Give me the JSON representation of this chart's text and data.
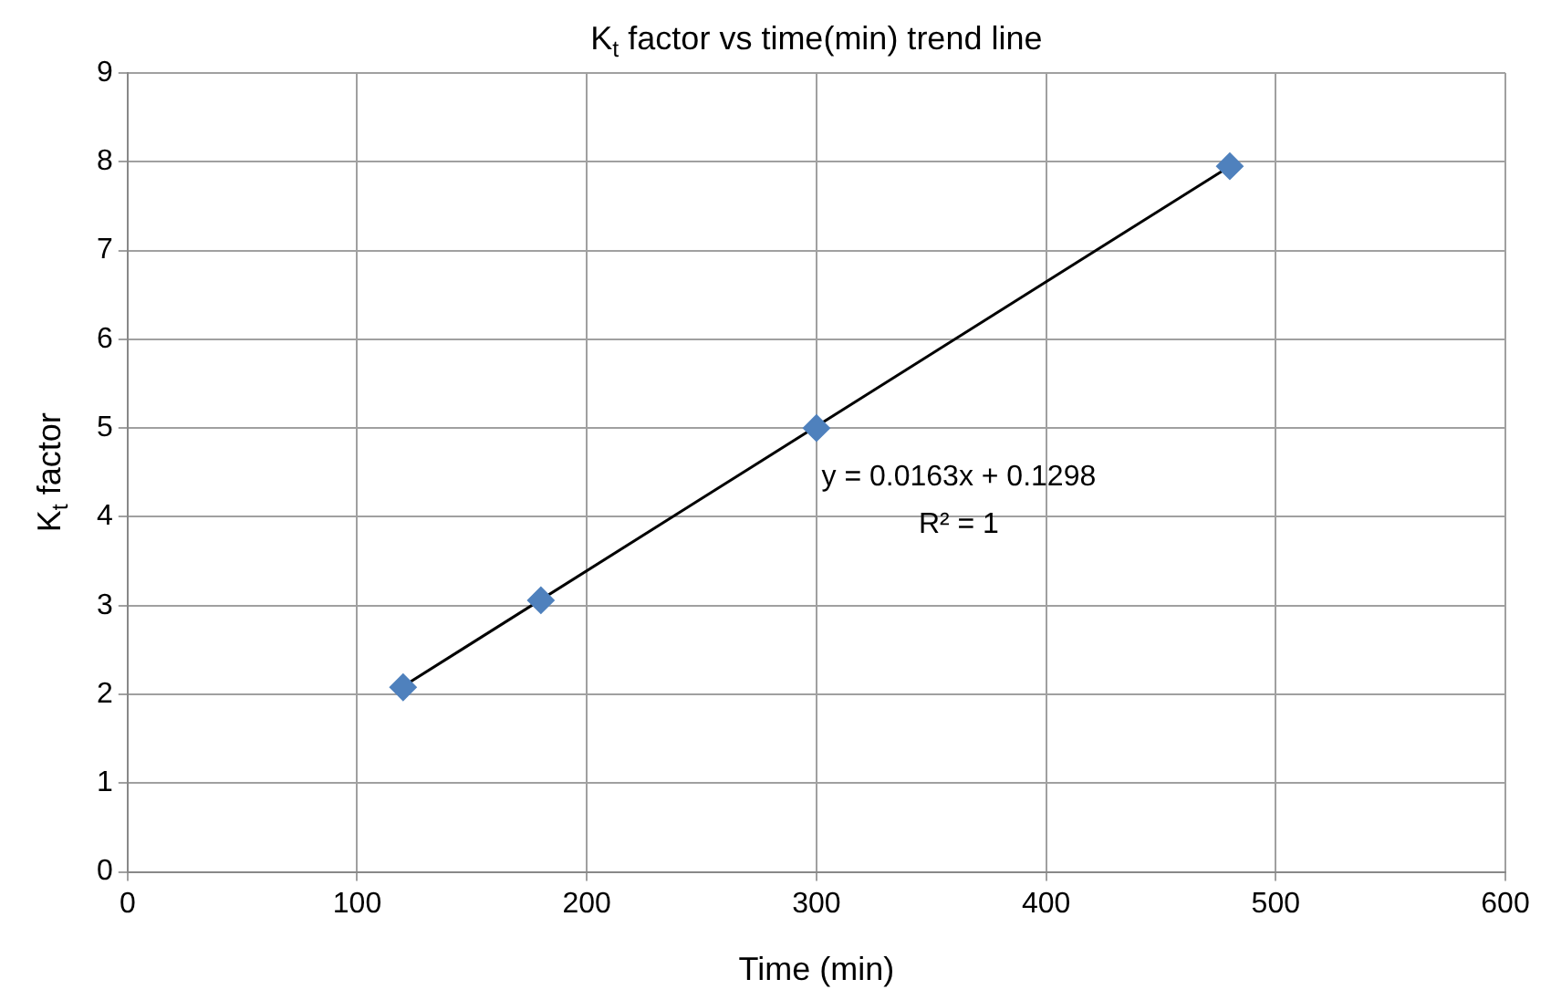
{
  "chart_data": {
    "type": "scatter",
    "title": "K$_{t}$ factor vs time(min) trend line",
    "xlabel": "Time (min)",
    "ylabel": "K$_{t}$ factor",
    "x": [
      120,
      180,
      300,
      480
    ],
    "series": [
      {
        "type": "scatter",
        "color": "#4f81bd",
        "marker": "diamond",
        "values": [
          2.08,
          3.06,
          5.0,
          7.95
        ]
      },
      {
        "type": "line",
        "color": "#000000",
        "x": [
          120,
          480
        ],
        "values": [
          2.09,
          7.95
        ]
      }
    ],
    "annotations": [
      "y = 0.0163x + 0.1298",
      "R² = 1"
    ],
    "xlim": [
      0,
      600
    ],
    "xticks": [
      0,
      100,
      200,
      300,
      400,
      500,
      600
    ],
    "ylim": [
      0,
      9
    ],
    "yticks": [
      0,
      1,
      2,
      3,
      4,
      5,
      6,
      7,
      8,
      9
    ],
    "grid": true,
    "legend": false
  }
}
